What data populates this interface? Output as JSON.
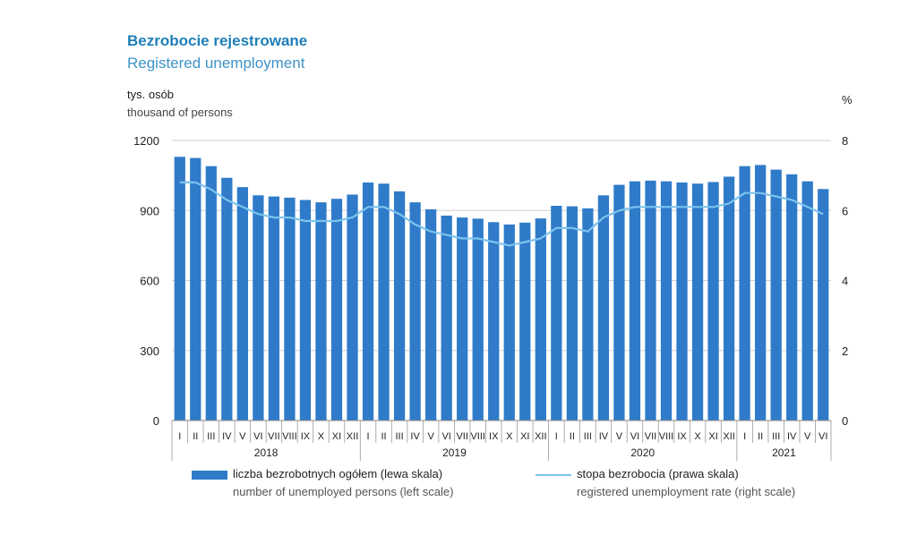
{
  "header": {
    "title_pl": "Bezrobocie rejestrowane",
    "title_en": "Registered unemployment",
    "left_unit_pl": "tys. osób",
    "left_unit_en": "thousand of persons",
    "right_unit": "%"
  },
  "legend": {
    "bar_pl": "liczba bezrobotnych ogółem (lewa skala)",
    "bar_en": "number of unemployed persons (left scale)",
    "line_pl": "stopa bezrobocia (prawa skala)",
    "line_en": "registered unemployment rate (right scale)"
  },
  "colors": {
    "bar": "#2f7bc9",
    "line": "#7cc4ee",
    "grid": "#cfcfcf"
  },
  "chart_data": {
    "type": "bar",
    "left_axis": {
      "ylim": [
        0,
        1200
      ],
      "ticks": [
        "0",
        "300",
        "600",
        "900",
        "1200"
      ]
    },
    "right_axis": {
      "ylim": [
        0,
        8
      ],
      "ticks": [
        "0",
        "2",
        "4",
        "6",
        "8"
      ]
    },
    "grid": true,
    "legend_position": "bottom",
    "categories": [
      "I",
      "II",
      "III",
      "IV",
      "V",
      "VI",
      "VII",
      "VIII",
      "IX",
      "X",
      "XI",
      "XII",
      "I",
      "II",
      "III",
      "IV",
      "V",
      "VI",
      "VII",
      "VIII",
      "IX",
      "X",
      "XI",
      "XII",
      "I",
      "II",
      "III",
      "IV",
      "V",
      "VI",
      "VII",
      "VIII",
      "IX",
      "X",
      "XI",
      "XII",
      "I",
      "II",
      "III",
      "IV",
      "V",
      "VI"
    ],
    "years": [
      {
        "label": "2018",
        "months": 12
      },
      {
        "label": "2019",
        "months": 12
      },
      {
        "label": "2020",
        "months": 12
      },
      {
        "label": "2021",
        "months": 6
      }
    ],
    "series": [
      {
        "name": "liczba bezrobotnych ogółem (lewa skala)",
        "axis": "left",
        "type": "bar",
        "values": [
          1130,
          1125,
          1090,
          1040,
          1000,
          965,
          960,
          955,
          945,
          935,
          950,
          968,
          1020,
          1015,
          982,
          935,
          905,
          878,
          870,
          865,
          850,
          840,
          848,
          866,
          920,
          918,
          909,
          965,
          1010,
          1025,
          1028,
          1025,
          1020,
          1015,
          1022,
          1045,
          1090,
          1095,
          1075,
          1055,
          1025,
          992
        ]
      },
      {
        "name": "stopa bezrobocia (prawa skala)",
        "axis": "right",
        "type": "line",
        "values": [
          6.8,
          6.8,
          6.6,
          6.3,
          6.1,
          5.9,
          5.8,
          5.8,
          5.7,
          5.7,
          5.7,
          5.8,
          6.1,
          6.1,
          5.9,
          5.6,
          5.4,
          5.3,
          5.2,
          5.2,
          5.1,
          5.0,
          5.1,
          5.2,
          5.5,
          5.5,
          5.4,
          5.8,
          6.0,
          6.1,
          6.1,
          6.1,
          6.1,
          6.1,
          6.1,
          6.2,
          6.5,
          6.5,
          6.4,
          6.3,
          6.1,
          5.9
        ]
      }
    ]
  }
}
